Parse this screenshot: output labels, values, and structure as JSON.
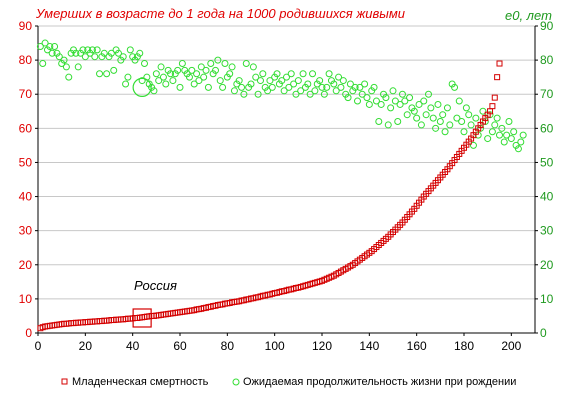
{
  "chart_data": {
    "type": "scatter",
    "title": "Умерших в возрасте до 1 года на 1000 родившихся живыми",
    "y2label": "e0, лет",
    "annotation": "Россия",
    "xlim": [
      0,
      210
    ],
    "ylim": [
      0,
      90
    ],
    "y2lim": [
      0,
      90
    ],
    "xticks": [
      0,
      20,
      40,
      60,
      80,
      100,
      120,
      140,
      160,
      180,
      200
    ],
    "yticks": [
      0,
      10,
      20,
      30,
      40,
      50,
      60,
      70,
      80,
      90
    ],
    "y2ticks": [
      0,
      10,
      20,
      30,
      40,
      50,
      60,
      70,
      80,
      90
    ],
    "grid": true,
    "legend_position": "bottom",
    "colors": {
      "infant": "#d40000",
      "life": "#33dd33",
      "grid": "#c8c8c8",
      "title": "#e00000",
      "right_axis": "#1f9a1f"
    },
    "series": [
      {
        "name": "Младенческая  смертность",
        "axis": "left",
        "marker": "square",
        "values": [
          1.4,
          1.7,
          1.9,
          2.0,
          2.1,
          2.2,
          2.3,
          2.4,
          2.5,
          2.6,
          2.7,
          2.7,
          2.8,
          2.9,
          2.9,
          3.0,
          3.0,
          3.1,
          3.1,
          3.2,
          3.2,
          3.3,
          3.3,
          3.4,
          3.4,
          3.5,
          3.5,
          3.6,
          3.6,
          3.7,
          3.8,
          3.8,
          3.9,
          3.9,
          4.0,
          4.0,
          4.1,
          4.2,
          4.2,
          4.3,
          4.4,
          4.4,
          4.5,
          4.6,
          4.7,
          4.8,
          4.9,
          5.0,
          5.0,
          5.1,
          5.2,
          5.3,
          5.4,
          5.5,
          5.6,
          5.7,
          5.8,
          5.9,
          6.0,
          6.1,
          6.2,
          6.3,
          6.4,
          6.5,
          6.6,
          6.7,
          6.9,
          7.0,
          7.1,
          7.3,
          7.4,
          7.6,
          7.7,
          7.9,
          8.0,
          8.2,
          8.3,
          8.4,
          8.6,
          8.7,
          8.8,
          9.0,
          9.1,
          9.2,
          9.3,
          9.5,
          9.6,
          9.8,
          9.9,
          10.1,
          10.2,
          10.4,
          10.5,
          10.7,
          10.9,
          11.0,
          11.2,
          11.3,
          11.5,
          11.7,
          11.8,
          12.0,
          12.2,
          12.3,
          12.5,
          12.7,
          12.8,
          13.0,
          13.2,
          13.3,
          13.5,
          13.7,
          13.9,
          14.1,
          14.3,
          14.5,
          14.7,
          14.9,
          15.1,
          15.3,
          15.6,
          15.9,
          16.2,
          16.5,
          16.8,
          17.2,
          17.6,
          18.0,
          18.4,
          18.8,
          19.2,
          19.6,
          20.0,
          20.5,
          21.0,
          21.5,
          22.0,
          22.5,
          23.0,
          23.5,
          24.0,
          24.6,
          25.2,
          25.8,
          26.4,
          27.0,
          27.6,
          28.2,
          28.9,
          29.6,
          30.3,
          31.0,
          31.7,
          32.4,
          33.2,
          34.0,
          34.8,
          35.6,
          36.4,
          37.3,
          38.2,
          39.1,
          40.0,
          40.8,
          41.6,
          42.4,
          43.2,
          44.0,
          44.8,
          45.6,
          46.4,
          47.2,
          48.0,
          48.9,
          49.8,
          50.7,
          51.6,
          52.5,
          53.4,
          54.3,
          55.2,
          56.1,
          57.0,
          58.0,
          59.0,
          60.0,
          61.0,
          62.0,
          63.0,
          64.0,
          65.0,
          66.5,
          69.0,
          75.0,
          79.0
        ]
      },
      {
        "name": "Ожидаемая продолжительность жизни при рождении",
        "axis": "right",
        "marker": "circle",
        "values": [
          84,
          79,
          85,
          83,
          84,
          82,
          84,
          82,
          81,
          79,
          80,
          78,
          75,
          82,
          83,
          82,
          78,
          82,
          83,
          81,
          83,
          82,
          83,
          81,
          83,
          76,
          81,
          82,
          76,
          81,
          82,
          77,
          83,
          82,
          80,
          81,
          73,
          75,
          83,
          81,
          80,
          81,
          82,
          74,
          79,
          75,
          73,
          72,
          71,
          76,
          74,
          78,
          75,
          73,
          77,
          76,
          74,
          76,
          77,
          72,
          79,
          77,
          76,
          75,
          77,
          73,
          76,
          74,
          78,
          75,
          77,
          72,
          79,
          76,
          77,
          80,
          74,
          72,
          79,
          75,
          76,
          78,
          71,
          73,
          74,
          72,
          70,
          79,
          72,
          73,
          78,
          75,
          70,
          74,
          76,
          72,
          71,
          74,
          72,
          75,
          76,
          73,
          74,
          71,
          75,
          72,
          76,
          73,
          70,
          74,
          71,
          76,
          72,
          73,
          70,
          76,
          71,
          73,
          74,
          72,
          70,
          72,
          76,
          74,
          73,
          71,
          75,
          72,
          74,
          70,
          69,
          73,
          71,
          72,
          68,
          72,
          70,
          73,
          69,
          67,
          71,
          72,
          68,
          62,
          67,
          70,
          69,
          61,
          66,
          71,
          68,
          62,
          67,
          70,
          68,
          64,
          69,
          66,
          65,
          63,
          67,
          61,
          68,
          64,
          70,
          66,
          63,
          60,
          67,
          62,
          64,
          59,
          66,
          61,
          73,
          72,
          63,
          68,
          62,
          59,
          66,
          64,
          61,
          55,
          63,
          58,
          60,
          65,
          62,
          57,
          64,
          59,
          61,
          63,
          58,
          60,
          56,
          58,
          62,
          57,
          59,
          55,
          54,
          56,
          58
        ]
      }
    ],
    "highlight": {
      "x": 44,
      "infant": 4.4,
      "life": 72
    }
  }
}
